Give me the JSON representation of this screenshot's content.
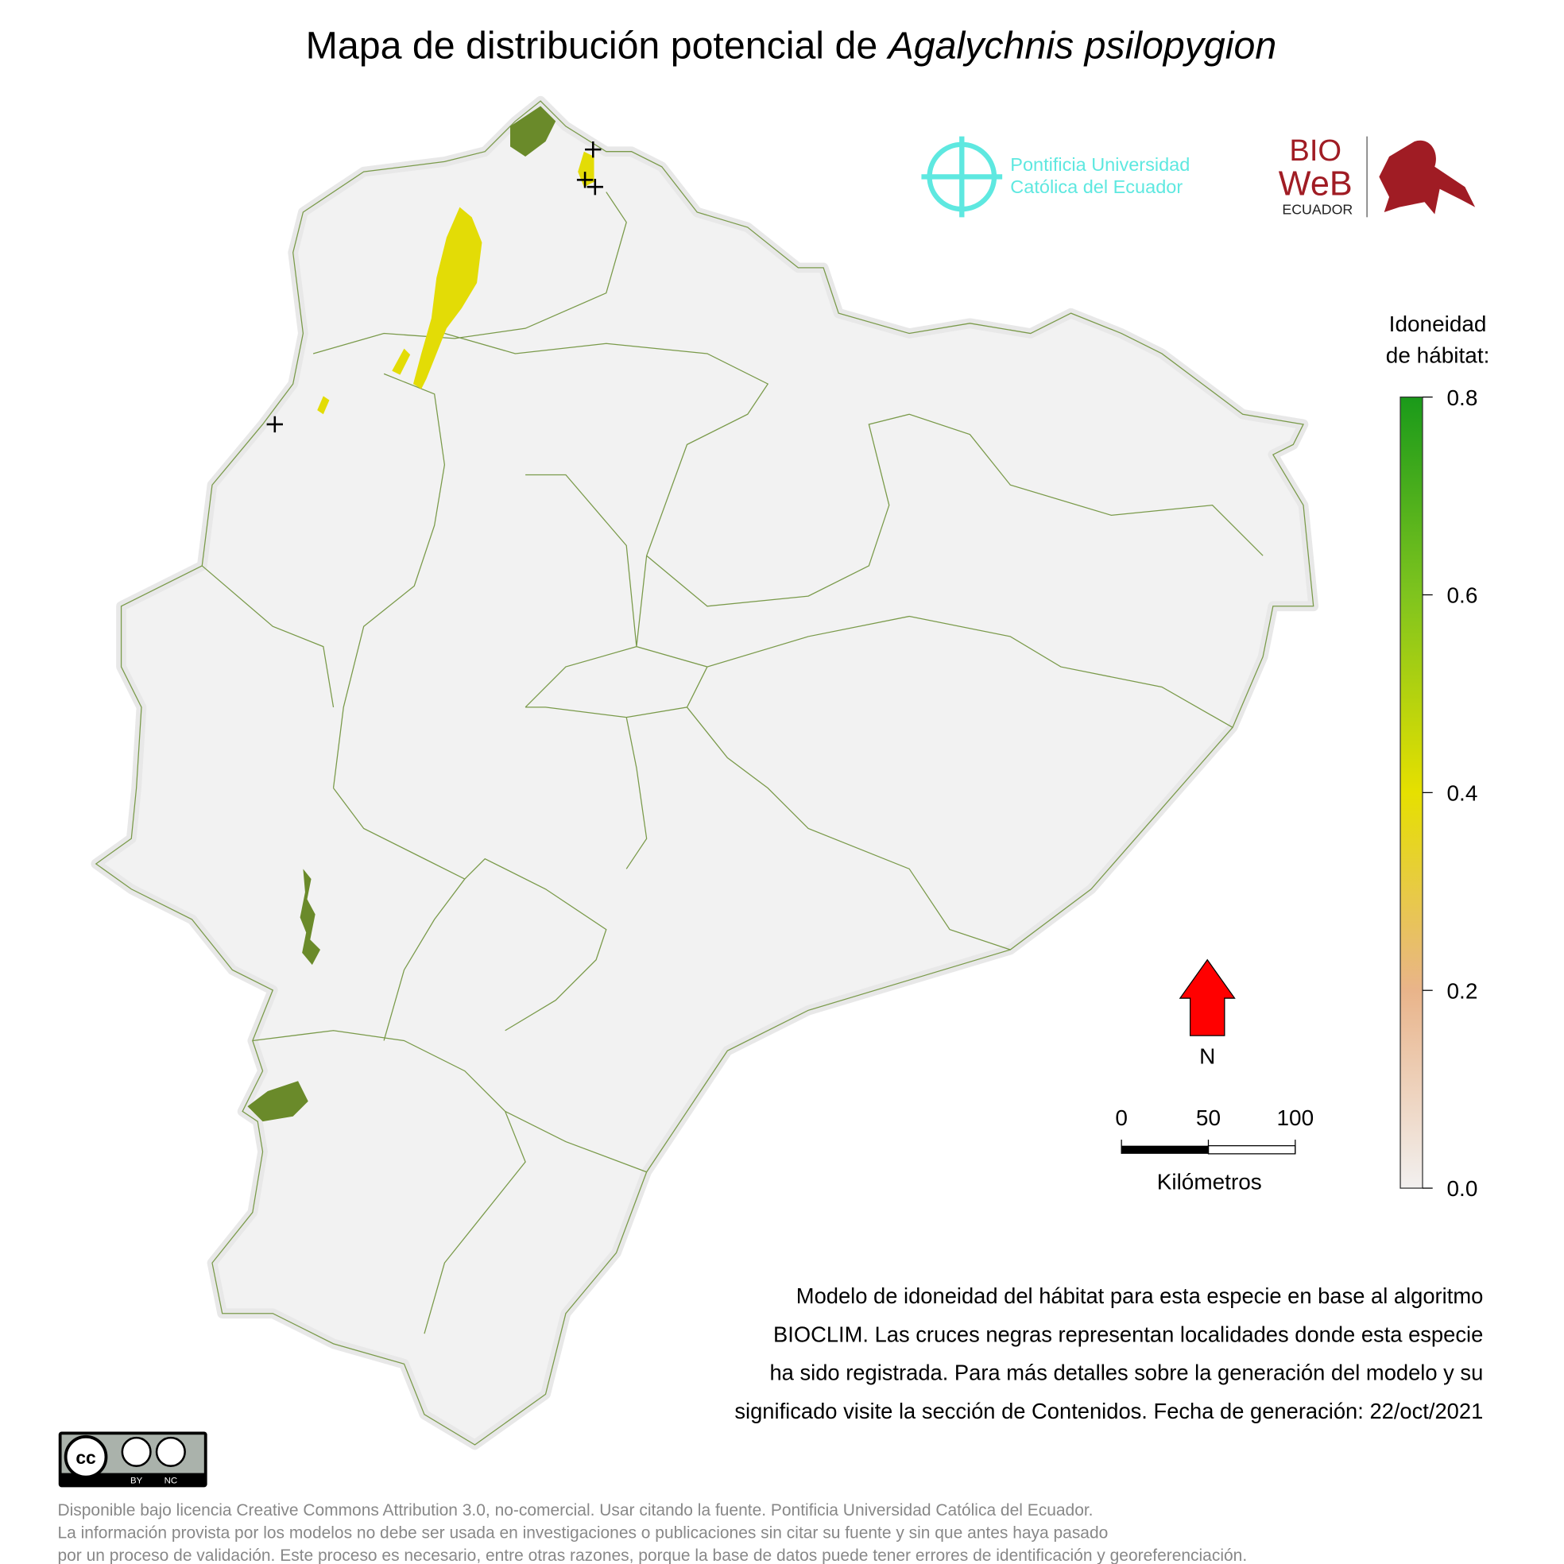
{
  "title": {
    "prefix": "Mapa de distribución potencial de ",
    "species": "Agalychnis psilopygion"
  },
  "logos": {
    "puce": [
      "Pontificia Universidad",
      "Católica del Ecuador"
    ],
    "bioweb": [
      "BIO",
      "WeB",
      "ECUADOR"
    ]
  },
  "legend": {
    "title": [
      "Idoneidad",
      "de hábitat:"
    ],
    "lim": [
      0,
      0.8
    ],
    "ticks": [
      {
        "value": 0,
        "label": "0.0"
      },
      {
        "value": 0.2,
        "label": "0.2"
      },
      {
        "value": 0.4,
        "label": "0.4"
      },
      {
        "value": 0.6,
        "label": "0.6"
      },
      {
        "value": 0.8,
        "label": "0.8"
      }
    ]
  },
  "north": "N",
  "scale_bar": {
    "lim": [
      0,
      100
    ],
    "ticks": [
      0,
      50,
      100
    ],
    "unit": "Kilómetros"
  },
  "description": [
    "Modelo de idoneidad del hábitat para esta especie en base al algoritmo",
    "BIOCLIM. Las cruces negras representan localidades donde esta especie",
    "ha sido registrada. Para más detalles sobre la generación del modelo y su",
    "significado visite la sección de Contenidos. Fecha de generación: 22/oct/2021"
  ],
  "license_badge": [
    "BY",
    "NC"
  ],
  "license": [
    "Disponible bajo licencia Creative Commons Attribution 3.0, no-comercial. Usar citando la fuente. Pontificia Universidad Católica del Ecuador.",
    "La información provista por los modelos no debe ser usada en investigaciones o publicaciones sin citar su fuente y sin que antes haya pasado",
    "por un proceso de validación. Este proceso es necesario, entre otras razones, porque la base de datos puede tener errores de identificación y georeferenciación."
  ]
}
